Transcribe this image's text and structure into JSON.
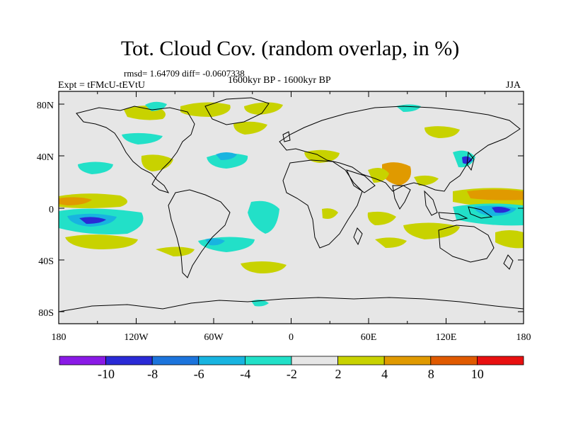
{
  "title": "Tot. Cloud Cov. (random overlap, in %)",
  "stats": "rmsd= 1.64709 diff= -0.0607338",
  "period": "1600kyr BP - 1600kyr BP",
  "experiment": "Expt = tFMcU-tEVtU",
  "season": "JJA",
  "axes": {
    "lat_ticks": [
      "80N",
      "40N",
      "0",
      "40S",
      "80S"
    ],
    "lon_ticks": [
      "180",
      "120W",
      "60W",
      "0",
      "60E",
      "120E",
      "180"
    ]
  },
  "colorbar": {
    "labels": [
      "-10",
      "-8",
      "-6",
      "-4",
      "-2",
      "2",
      "4",
      "8",
      "10"
    ],
    "colors": [
      "#8a1ae6",
      "#2a2ad6",
      "#1c74dc",
      "#18b4e0",
      "#22e0c8",
      "#e6e6e6",
      "#c8d200",
      "#e09a00",
      "#e05a00",
      "#e81010"
    ]
  }
}
